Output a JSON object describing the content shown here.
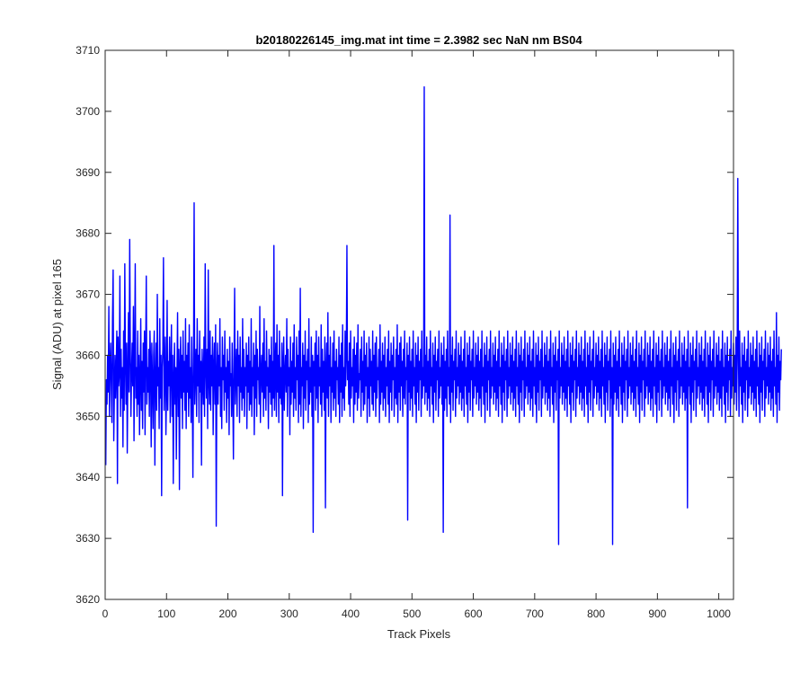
{
  "chart_data": {
    "type": "line",
    "title": "b20180226145_img.mat int time = 2.3982 sec  NaN nm BS04",
    "xlabel": "Track Pixels",
    "ylabel": "Signal (ADU) at pixel 165",
    "xlim": [
      0,
      1024
    ],
    "ylim": [
      3620,
      3710
    ],
    "xticks": [
      0,
      100,
      200,
      300,
      400,
      500,
      600,
      700,
      800,
      900,
      1000
    ],
    "yticks": [
      3620,
      3630,
      3640,
      3650,
      3660,
      3670,
      3680,
      3690,
      3700,
      3710
    ],
    "xtick_labels": [
      "0",
      "100",
      "200",
      "300",
      "400",
      "500",
      "600",
      "700",
      "800",
      "900",
      "1000"
    ],
    "ytick_labels": [
      "3620",
      "3630",
      "3640",
      "3650",
      "3660",
      "3670",
      "3680",
      "3690",
      "3700",
      "3710"
    ],
    "grid": false,
    "series": [
      {
        "name": "",
        "color": "#0000ff",
        "x_start": 1,
        "x_step": 1,
        "y": [
          3642,
          3656,
          3652,
          3660,
          3654,
          3668,
          3650,
          3658,
          3662,
          3655,
          3649,
          3666,
          3674,
          3646,
          3654,
          3660,
          3653,
          3658,
          3664,
          3639,
          3663,
          3655,
          3657,
          3673,
          3650,
          3661,
          3653,
          3658,
          3645,
          3664,
          3651,
          3675,
          3659,
          3652,
          3662,
          3644,
          3657,
          3667,
          3654,
          3679,
          3661,
          3650,
          3657,
          3662,
          3655,
          3668,
          3646,
          3660,
          3675,
          3653,
          3658,
          3650,
          3664,
          3652,
          3660,
          3647,
          3656,
          3666,
          3651,
          3659,
          3648,
          3662,
          3654,
          3664,
          3647,
          3660,
          3673,
          3652,
          3658,
          3654,
          3661,
          3650,
          3664,
          3659,
          3645,
          3662,
          3656,
          3648,
          3660,
          3664,
          3642,
          3656,
          3662,
          3651,
          3670,
          3655,
          3658,
          3648,
          3666,
          3653,
          3660,
          3637,
          3658,
          3661,
          3676,
          3651,
          3657,
          3663,
          3647,
          3654,
          3669,
          3651,
          3659,
          3655,
          3663,
          3649,
          3658,
          3665,
          3650,
          3660,
          3639,
          3656,
          3662,
          3652,
          3658,
          3643,
          3657,
          3667,
          3650,
          3661,
          3638,
          3658,
          3663,
          3653,
          3660,
          3648,
          3664,
          3654,
          3659,
          3651,
          3666,
          3648,
          3660,
          3654,
          3662,
          3650,
          3665,
          3653,
          3658,
          3649,
          3663,
          3655,
          3640,
          3659,
          3685,
          3652,
          3657,
          3661,
          3650,
          3666,
          3655,
          3660,
          3649,
          3664,
          3654,
          3659,
          3642,
          3661,
          3657,
          3652,
          3663,
          3650,
          3675,
          3658,
          3653,
          3661,
          3648,
          3674,
          3656,
          3652,
          3664,
          3651,
          3660,
          3655,
          3663,
          3647,
          3658,
          3662,
          3652,
          3665,
          3632,
          3657,
          3662,
          3652,
          3660,
          3655,
          3666,
          3650,
          3658,
          3648,
          3663,
          3656,
          3660,
          3651,
          3664,
          3654,
          3658,
          3649,
          3661,
          3653,
          3659,
          3647,
          3663,
          3655,
          3657,
          3650,
          3662,
          3654,
          3643,
          3659,
          3671,
          3652,
          3657,
          3661,
          3650,
          3664,
          3655,
          3660,
          3649,
          3663,
          3654,
          3658,
          3651,
          3666,
          3653,
          3661,
          3650,
          3658,
          3655,
          3662,
          3648,
          3660,
          3654,
          3663,
          3651,
          3659,
          3652,
          3666,
          3650,
          3658,
          3655,
          3662,
          3647,
          3660,
          3653,
          3664,
          3650,
          3661,
          3656,
          3658,
          3652,
          3668,
          3649,
          3657,
          3660,
          3654,
          3662,
          3650,
          3666,
          3653,
          3659,
          3651,
          3664,
          3655,
          3658,
          3648,
          3661,
          3654,
          3660,
          3652,
          3663,
          3650,
          3659,
          3653,
          3678,
          3651,
          3657,
          3662,
          3650,
          3665,
          3654,
          3660,
          3649,
          3664,
          3653,
          3658,
          3652,
          3662,
          3637,
          3659,
          3663,
          3651,
          3657,
          3660,
          3654,
          3666,
          3650,
          3661,
          3655,
          3658,
          3647,
          3663,
          3652,
          3659,
          3654,
          3662,
          3650,
          3665,
          3653,
          3658,
          3651,
          3663,
          3656,
          3660,
          3649,
          3664,
          3652,
          3671,
          3650,
          3658,
          3655,
          3662,
          3648,
          3660,
          3653,
          3664,
          3651,
          3659,
          3656,
          3661,
          3649,
          3666,
          3652,
          3658,
          3654,
          3663,
          3650,
          3660,
          3631,
          3659,
          3655,
          3662,
          3651,
          3664,
          3653,
          3660,
          3649,
          3663,
          3655,
          3658,
          3652,
          3665,
          3650,
          3661,
          3654,
          3659,
          3651,
          3663,
          3635,
          3658,
          3662,
          3653,
          3667,
          3650,
          3660,
          3655,
          3663,
          3649,
          3658,
          3654,
          3662,
          3651,
          3664,
          3653,
          3659,
          3650,
          3661,
          3656,
          3658,
          3652,
          3663,
          3649,
          3660,
          3654,
          3662,
          3650,
          3665,
          3653,
          3658,
          3651,
          3664,
          3655,
          3660,
          3678,
          3656,
          3659,
          3652,
          3662,
          3650,
          3664,
          3653,
          3658,
          3655,
          3661,
          3649,
          3663,
          3652,
          3660,
          3654,
          3662,
          3651,
          3665,
          3653,
          3657,
          3656,
          3661,
          3650,
          3663,
          3654,
          3659,
          3651,
          3664,
          3652,
          3660,
          3655,
          3662,
          3649,
          3658,
          3653,
          3663,
          3650,
          3661,
          3655,
          3659,
          3652,
          3664,
          3651,
          3660,
          3654,
          3662,
          3650,
          3663,
          3653,
          3658,
          3656,
          3661,
          3649,
          3665,
          3652,
          3659,
          3654,
          3662,
          3651,
          3660,
          3653,
          3663,
          3650,
          3658,
          3655,
          3661,
          3652,
          3664,
          3649,
          3659,
          3654,
          3662,
          3651,
          3660,
          3656,
          3663,
          3650,
          3658,
          3653,
          3661,
          3652,
          3665,
          3649,
          3660,
          3654,
          3662,
          3651,
          3663,
          3655,
          3659,
          3650,
          3661,
          3653,
          3664,
          3652,
          3658,
          3656,
          3662,
          3633,
          3660,
          3654,
          3663,
          3651,
          3659,
          3653,
          3661,
          3650,
          3664,
          3655,
          3658,
          3652,
          3662,
          3649,
          3660,
          3654,
          3663,
          3651,
          3659,
          3656,
          3661,
          3650,
          3664,
          3653,
          3658,
          3655,
          3704,
          3652,
          3660,
          3654,
          3663,
          3651,
          3659,
          3653,
          3661,
          3650,
          3664,
          3655,
          3658,
          3652,
          3662,
          3649,
          3660,
          3654,
          3663,
          3651,
          3659,
          3656,
          3661,
          3650,
          3664,
          3653,
          3658,
          3655,
          3662,
          3652,
          3660,
          3631,
          3663,
          3651,
          3659,
          3653,
          3661,
          3650,
          3664,
          3655,
          3658,
          3652,
          3683,
          3649,
          3660,
          3654,
          3663,
          3651,
          3659,
          3656,
          3661,
          3650,
          3664,
          3653,
          3658,
          3655,
          3662,
          3652,
          3660,
          3654,
          3663,
          3651,
          3659,
          3653,
          3661,
          3650,
          3664,
          3655,
          3658,
          3652,
          3662,
          3649,
          3660,
          3654,
          3663,
          3651,
          3659,
          3656,
          3661,
          3650,
          3664,
          3653,
          3658,
          3655,
          3662,
          3652,
          3660,
          3654,
          3663,
          3651,
          3659,
          3653,
          3661,
          3650,
          3664,
          3655,
          3658,
          3652,
          3662,
          3649,
          3660,
          3654,
          3663,
          3651,
          3659,
          3656,
          3661,
          3650,
          3664,
          3653,
          3658,
          3655,
          3662,
          3652,
          3660,
          3654,
          3663,
          3651,
          3659,
          3653,
          3661,
          3650,
          3664,
          3655,
          3658,
          3652,
          3662,
          3649,
          3660,
          3654,
          3663,
          3651,
          3659,
          3656,
          3661,
          3650,
          3664,
          3653,
          3658,
          3655,
          3662,
          3652,
          3660,
          3654,
          3663,
          3651,
          3659,
          3653,
          3661,
          3650,
          3664,
          3655,
          3658,
          3652,
          3662,
          3649,
          3660,
          3654,
          3663,
          3651,
          3659,
          3656,
          3661,
          3650,
          3664,
          3653,
          3658,
          3655,
          3662,
          3652,
          3660,
          3654,
          3663,
          3651,
          3659,
          3653,
          3661,
          3650,
          3664,
          3655,
          3658,
          3652,
          3662,
          3649,
          3660,
          3654,
          3663,
          3651,
          3659,
          3656,
          3661,
          3650,
          3664,
          3653,
          3658,
          3655,
          3662,
          3652,
          3660,
          3654,
          3663,
          3651,
          3659,
          3653,
          3661,
          3650,
          3664,
          3655,
          3658,
          3652,
          3662,
          3649,
          3660,
          3654,
          3663,
          3651,
          3659,
          3656,
          3661,
          3629,
          3664,
          3653,
          3658,
          3655,
          3662,
          3652,
          3660,
          3654,
          3663,
          3651,
          3659,
          3653,
          3661,
          3650,
          3664,
          3655,
          3658,
          3652,
          3662,
          3649,
          3660,
          3654,
          3663,
          3651,
          3659,
          3656,
          3661,
          3650,
          3664,
          3653,
          3658,
          3655,
          3662,
          3652,
          3660,
          3654,
          3663,
          3651,
          3659,
          3653,
          3661,
          3650,
          3664,
          3655,
          3658,
          3652,
          3662,
          3649,
          3660,
          3654,
          3663,
          3651,
          3659,
          3656,
          3661,
          3650,
          3664,
          3653,
          3658,
          3655,
          3662,
          3652,
          3660,
          3654,
          3663,
          3651,
          3659,
          3653,
          3661,
          3650,
          3664,
          3655,
          3658,
          3652,
          3662,
          3649,
          3660,
          3654,
          3663,
          3651,
          3659,
          3656,
          3661,
          3650,
          3664,
          3653,
          3658,
          3629,
          3662,
          3652,
          3660,
          3654,
          3663,
          3651,
          3659,
          3653,
          3661,
          3650,
          3664,
          3655,
          3658,
          3652,
          3662,
          3649,
          3660,
          3654,
          3663,
          3651,
          3659,
          3656,
          3661,
          3650,
          3664,
          3653,
          3658,
          3655,
          3662,
          3652,
          3660,
          3654,
          3663,
          3651,
          3659,
          3653,
          3661,
          3650,
          3664,
          3655,
          3658,
          3652,
          3662,
          3649,
          3660,
          3654,
          3663,
          3651,
          3659,
          3656,
          3661,
          3650,
          3664,
          3653,
          3658,
          3655,
          3662,
          3652,
          3660,
          3654,
          3663,
          3651,
          3659,
          3653,
          3661,
          3650,
          3664,
          3655,
          3658,
          3652,
          3662,
          3649,
          3660,
          3654,
          3663,
          3651,
          3659,
          3656,
          3661,
          3650,
          3664,
          3653,
          3658,
          3655,
          3662,
          3652,
          3660,
          3654,
          3663,
          3651,
          3659,
          3653,
          3661,
          3650,
          3664,
          3655,
          3658,
          3652,
          3662,
          3649,
          3660,
          3654,
          3663,
          3651,
          3659,
          3656,
          3661,
          3650,
          3664,
          3653,
          3658,
          3655,
          3662,
          3652,
          3660,
          3654,
          3663,
          3651,
          3659,
          3653,
          3661,
          3635,
          3664,
          3655,
          3658,
          3652,
          3662,
          3649,
          3660,
          3654,
          3663,
          3651,
          3659,
          3656,
          3661,
          3650,
          3664,
          3653,
          3658,
          3655,
          3662,
          3652,
          3660,
          3654,
          3663,
          3651,
          3659,
          3653,
          3661,
          3650,
          3664,
          3655,
          3658,
          3652,
          3662,
          3649,
          3660,
          3654,
          3663,
          3651,
          3659,
          3656,
          3661,
          3650,
          3664,
          3653,
          3658,
          3655,
          3662,
          3652,
          3660,
          3654,
          3663,
          3651,
          3659,
          3653,
          3661,
          3650,
          3664,
          3655,
          3658,
          3652,
          3662,
          3649,
          3660,
          3654,
          3663,
          3651,
          3659,
          3656,
          3661,
          3650,
          3664,
          3653,
          3658,
          3655,
          3662,
          3652,
          3660,
          3654,
          3663,
          3651,
          3659,
          3689,
          3661,
          3650,
          3664,
          3655,
          3658,
          3652,
          3662,
          3649,
          3660,
          3654,
          3663,
          3651,
          3659,
          3656,
          3661,
          3650,
          3664,
          3653,
          3658,
          3655,
          3662,
          3652,
          3660,
          3654,
          3663,
          3651,
          3659,
          3653,
          3661,
          3650,
          3664,
          3655,
          3658,
          3652,
          3662,
          3649,
          3660,
          3654,
          3663,
          3651,
          3659,
          3656,
          3661,
          3650,
          3664,
          3653,
          3658,
          3655,
          3662,
          3652,
          3660,
          3654,
          3663,
          3651,
          3659,
          3653,
          3661,
          3650,
          3664,
          3655,
          3658,
          3652,
          3667,
          3649,
          3660,
          3654,
          3663,
          3651,
          3659,
          3656,
          3661
        ]
      }
    ]
  }
}
